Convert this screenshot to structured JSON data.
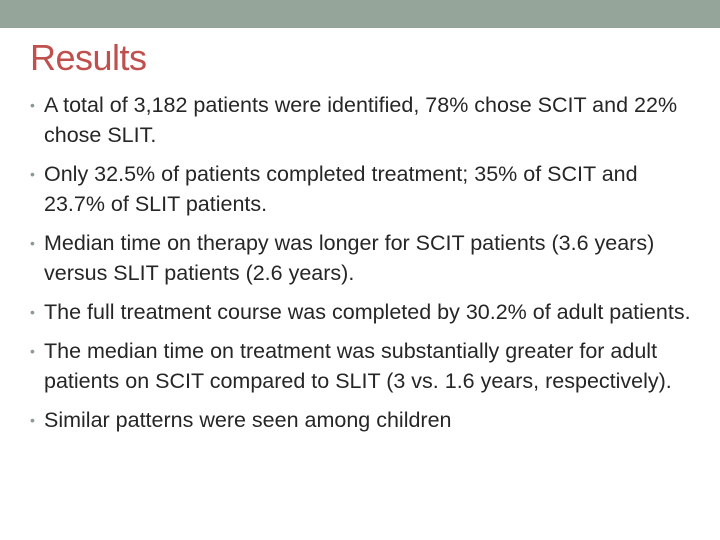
{
  "slide": {
    "title": "Results",
    "bullet_marker": "•",
    "bullets": [
      "A total of 3,182 patients were identified, 78% chose SCIT and 22% chose SLIT.",
      "Only 32.5% of patients completed treatment; 35% of SCIT and 23.7% of SLIT patients.",
      "Median time on therapy was longer for SCIT patients (3.6 years) versus SLIT patients (2.6 years).",
      "The full treatment course was completed by 30.2% of adult patients.",
      "The median time on treatment was substantially greater for adult patients on SCIT compared to SLIT (3 vs. 1.6 years, respectively).",
      "Similar patterns were seen among children"
    ]
  },
  "colors": {
    "top_band": "#96a59a",
    "title": "#c0504d",
    "body_text": "#262626",
    "bullet": "#8c9a90"
  }
}
